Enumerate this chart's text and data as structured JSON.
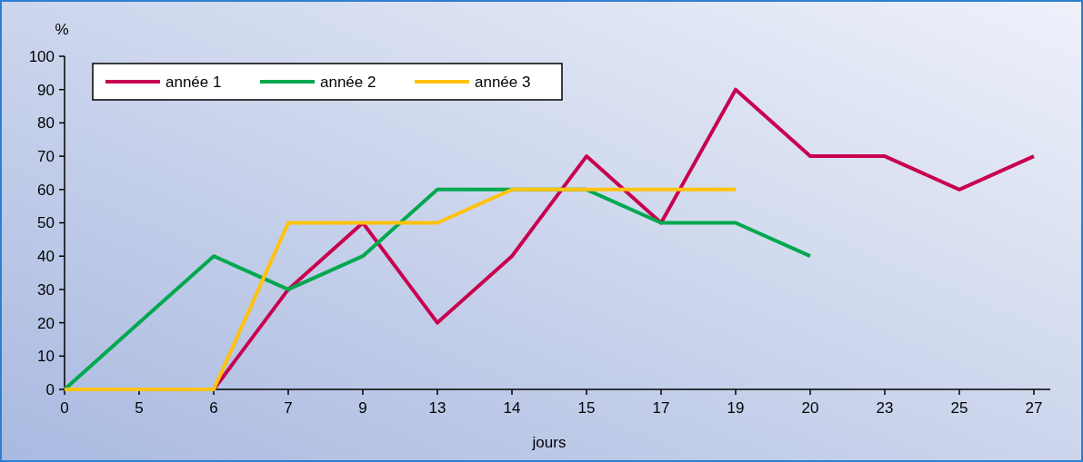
{
  "chart_data": {
    "type": "line",
    "xlabel": "jours",
    "ylabel": "%",
    "categories": [
      "0",
      "5",
      "6",
      "7",
      "9",
      "13",
      "14",
      "15",
      "17",
      "19",
      "20",
      "23",
      "25",
      "27"
    ],
    "series": [
      {
        "name": "année 1",
        "color": "#c8004f",
        "values": [
          null,
          null,
          0,
          30,
          50,
          20,
          40,
          70,
          50,
          90,
          70,
          70,
          60,
          70
        ]
      },
      {
        "name": "année 2",
        "color": "#00a84f",
        "values": [
          0,
          20,
          40,
          30,
          40,
          60,
          60,
          60,
          50,
          50,
          40,
          null,
          null,
          null
        ]
      },
      {
        "name": "année 3",
        "color": "#ffc20e",
        "values": [
          0,
          0,
          0,
          50,
          50,
          50,
          60,
          60,
          60,
          60,
          null,
          null,
          null,
          null
        ]
      }
    ],
    "ylim": [
      0,
      100
    ],
    "yticks": [
      0,
      10,
      20,
      30,
      40,
      50,
      60,
      70,
      80,
      90,
      100
    ],
    "grid": false,
    "legend": "top left",
    "marker": "none",
    "line_style": "solid"
  }
}
